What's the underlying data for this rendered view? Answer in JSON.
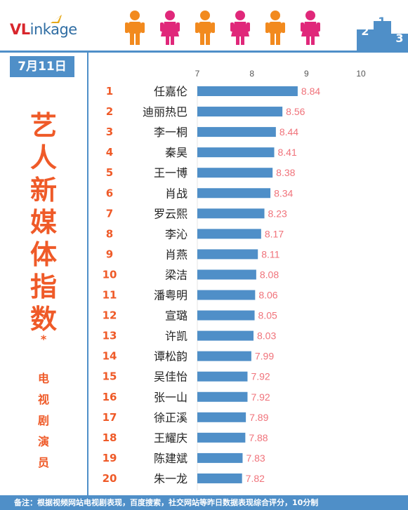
{
  "brand": {
    "logo_v": "VL",
    "logo_rest": "inkage"
  },
  "date_label": "7月11日",
  "title_chars": [
    "艺",
    "人",
    "新",
    "媒",
    "体",
    "指",
    "数"
  ],
  "title_mark": "*",
  "subtitle_chars": [
    "电",
    "视",
    "剧",
    "演",
    "员"
  ],
  "colors": {
    "accent_blue": "#4f8fc8",
    "bar_blue": "#4f8fc8",
    "title_orange": "#ef5a28",
    "value_pink": "#f0727a",
    "rank_orange": "#ef5a28"
  },
  "footer": "备注：根据视频网站电视剧表现，百度搜索，社交网站等昨日数据表现综合评分，10分制",
  "chart_data": {
    "type": "bar",
    "orientation": "horizontal",
    "xlim": [
      7,
      10
    ],
    "ticks": [
      "7",
      "8",
      "9",
      "10"
    ],
    "ranks": [
      "1",
      "2",
      "3",
      "4",
      "5",
      "6",
      "7",
      "8",
      "9",
      "10",
      "11",
      "12",
      "13",
      "14",
      "15",
      "16",
      "17",
      "18",
      "19",
      "20"
    ],
    "categories": [
      "任嘉伦",
      "迪丽热巴",
      "李一桐",
      "秦昊",
      "王一博",
      "肖战",
      "罗云熙",
      "李沁",
      "肖燕",
      "梁洁",
      "潘粤明",
      "宣璐",
      "许凯",
      "谭松韵",
      "吴佳怡",
      "张一山",
      "徐正溪",
      "王耀庆",
      "陈建斌",
      "朱一龙"
    ],
    "values": [
      8.84,
      8.56,
      8.44,
      8.41,
      8.38,
      8.34,
      8.23,
      8.17,
      8.11,
      8.08,
      8.06,
      8.05,
      8.03,
      7.99,
      7.92,
      7.92,
      7.89,
      7.88,
      7.83,
      7.82
    ],
    "value_labels": [
      "8.84",
      "8.56",
      "8.44",
      "8.41",
      "8.38",
      "8.34",
      "8.23",
      "8.17",
      "8.11",
      "8.08",
      "8.06",
      "8.05",
      "8.03",
      "7.99",
      "7.92",
      "7.92",
      "7.89",
      "7.88",
      "7.83",
      "7.82"
    ]
  }
}
